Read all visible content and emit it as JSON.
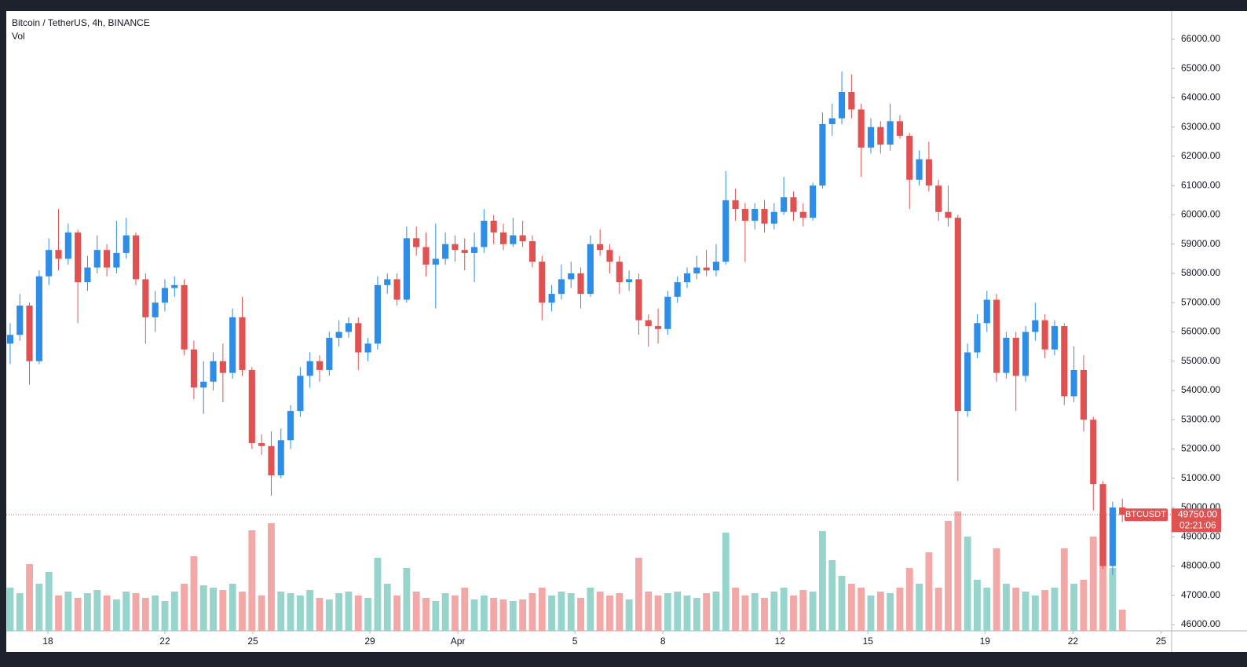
{
  "chart_data": {
    "type": "candlestick",
    "title": "Bitcoin / TetherUS, 4h, BINANCE",
    "volume_label": "Vol",
    "up_color": "#2e8de6",
    "down_color": "#e05252",
    "volume_up_color": "#97d5cc",
    "volume_down_color": "#f3a8a8",
    "open": [
      55600,
      55900,
      56900,
      55000,
      57900,
      58800,
      58500,
      59400,
      57700,
      58200,
      58800,
      58200,
      58700,
      59300,
      57800,
      56500,
      57000,
      57500,
      57600,
      55400,
      54100,
      54300,
      55000,
      54600,
      56500,
      54700,
      52200,
      52100,
      51100,
      52300,
      53300,
      54500,
      55000,
      54700,
      55800,
      56000,
      56300,
      55300,
      55600,
      57600,
      57800,
      57100,
      59200,
      58900,
      58300,
      58500,
      59000,
      58800,
      58700,
      58900,
      59800,
      59400,
      59000,
      59300,
      59100,
      58400,
      57000,
      57300,
      57800,
      58000,
      57300,
      59000,
      58800,
      58400,
      57700,
      57800,
      56400,
      56200,
      56100,
      57200,
      57700,
      58000,
      58200,
      58100,
      58400,
      60500,
      60200,
      59800,
      60200,
      59700,
      60100,
      60600,
      60100,
      59900,
      61000,
      63100,
      63300,
      64200,
      63600,
      62300,
      63000,
      62400,
      63200,
      62700,
      61200,
      61900,
      61000,
      60100,
      59900,
      53300,
      55300,
      56300,
      57100,
      54600,
      55800,
      54500,
      56000,
      56400,
      55400,
      56200,
      53800,
      54700,
      53000,
      50800,
      48000,
      50000
    ],
    "high": [
      56300,
      57300,
      57000,
      58100,
      59200,
      60200,
      59700,
      59500,
      58600,
      59300,
      59000,
      59800,
      59900,
      59400,
      58000,
      57400,
      57800,
      57900,
      57800,
      55700,
      55000,
      55300,
      55600,
      56800,
      57200,
      54800,
      52500,
      52600,
      52700,
      53500,
      54800,
      55300,
      55200,
      56000,
      56400,
      56500,
      56500,
      55800,
      57900,
      58000,
      58000,
      59600,
      59600,
      59400,
      59700,
      59400,
      59300,
      59200,
      59400,
      60200,
      60000,
      59700,
      59900,
      59800,
      59300,
      58600,
      57600,
      58300,
      58400,
      58200,
      59300,
      59500,
      59000,
      58600,
      58100,
      58000,
      56600,
      56800,
      57400,
      57900,
      58200,
      58600,
      58800,
      59000,
      61500,
      60900,
      60400,
      60400,
      60500,
      60400,
      61300,
      60800,
      60400,
      61100,
      63500,
      63800,
      64900,
      64800,
      63800,
      63300,
      63200,
      63800,
      63400,
      62800,
      62200,
      62500,
      61200,
      61000,
      60000,
      55600,
      56600,
      57400,
      57300,
      56000,
      56000,
      56200,
      57000,
      56600,
      56400,
      56300,
      55500,
      55200,
      53100,
      50900,
      50200,
      50300
    ],
    "low": [
      54900,
      55700,
      54200,
      54900,
      57600,
      58100,
      58300,
      56300,
      57400,
      58000,
      57900,
      58000,
      58500,
      57600,
      55600,
      56000,
      56700,
      57200,
      55200,
      53700,
      53200,
      54000,
      53600,
      54400,
      54500,
      52000,
      51800,
      50400,
      51000,
      52000,
      53100,
      54100,
      54300,
      54500,
      55500,
      55800,
      54700,
      55000,
      55400,
      57300,
      56900,
      57000,
      58600,
      57900,
      56800,
      58300,
      58400,
      58100,
      57700,
      58700,
      59000,
      58800,
      58900,
      58900,
      58200,
      56400,
      56700,
      57100,
      57500,
      56800,
      57200,
      58600,
      58000,
      57300,
      57400,
      55900,
      55500,
      55600,
      55900,
      57000,
      57500,
      57800,
      57900,
      57900,
      58300,
      59800,
      58400,
      59500,
      59400,
      59500,
      60000,
      59800,
      59600,
      59800,
      60900,
      62700,
      63100,
      63300,
      61300,
      62100,
      62100,
      62200,
      62600,
      60200,
      61000,
      60800,
      59800,
      59600,
      50900,
      53100,
      55100,
      56000,
      54300,
      54400,
      53300,
      54300,
      55700,
      55100,
      55200,
      53500,
      53600,
      52600,
      49900,
      47900,
      47700,
      49500
    ],
    "close": [
      55900,
      56900,
      55000,
      57900,
      58800,
      58500,
      59400,
      57700,
      58200,
      58800,
      58200,
      58700,
      59300,
      57800,
      56500,
      57000,
      57500,
      57600,
      55400,
      54100,
      54300,
      55000,
      54600,
      56500,
      54700,
      52200,
      52100,
      51100,
      52300,
      53300,
      54500,
      55000,
      54700,
      55800,
      56000,
      56300,
      55300,
      55600,
      57600,
      57800,
      57100,
      59200,
      58900,
      58300,
      58500,
      59000,
      58800,
      58700,
      58900,
      59800,
      59400,
      59000,
      59300,
      59100,
      58400,
      57000,
      57300,
      57800,
      58000,
      57300,
      59000,
      58800,
      58400,
      57700,
      57800,
      56400,
      56200,
      56100,
      57200,
      57700,
      58000,
      58200,
      58100,
      58400,
      60500,
      60200,
      59800,
      60200,
      59700,
      60100,
      60600,
      60100,
      59900,
      61000,
      63100,
      63300,
      64200,
      63600,
      62300,
      63000,
      62400,
      63200,
      62700,
      61200,
      61900,
      61000,
      60100,
      59900,
      53300,
      55300,
      56300,
      57100,
      54600,
      55800,
      54500,
      56000,
      56400,
      55400,
      56200,
      53800,
      54700,
      53000,
      50800,
      48000,
      50000,
      49750
    ],
    "volume": [
      55,
      48,
      85,
      60,
      75,
      45,
      50,
      42,
      48,
      52,
      45,
      40,
      50,
      48,
      42,
      45,
      38,
      50,
      60,
      95,
      58,
      55,
      52,
      60,
      50,
      128,
      45,
      137,
      50,
      48,
      45,
      52,
      42,
      40,
      48,
      50,
      45,
      42,
      93,
      60,
      45,
      80,
      50,
      42,
      38,
      48,
      45,
      55,
      40,
      45,
      42,
      40,
      38,
      40,
      48,
      55,
      45,
      50,
      48,
      42,
      55,
      50,
      45,
      48,
      40,
      93,
      50,
      45,
      48,
      50,
      45,
      42,
      48,
      50,
      125,
      55,
      45,
      48,
      42,
      50,
      55,
      45,
      52,
      50,
      127,
      90,
      70,
      60,
      55,
      45,
      50,
      48,
      55,
      80,
      60,
      100,
      55,
      140,
      152,
      120,
      65,
      55,
      105,
      60,
      55,
      50,
      45,
      52,
      55,
      105,
      60,
      65,
      120,
      150,
      80,
      27
    ],
    "xlim": [
      -0.4,
      120.1
    ],
    "xticks": [
      {
        "value": 3.9,
        "label": "18"
      },
      {
        "value": 16,
        "label": "22"
      },
      {
        "value": 25.1,
        "label": "25"
      },
      {
        "value": 37.2,
        "label": "29"
      },
      {
        "value": 46.3,
        "label": "Apr"
      },
      {
        "value": 58.4,
        "label": "5"
      },
      {
        "value": 67.5,
        "label": "8"
      },
      {
        "value": 79.6,
        "label": "12"
      },
      {
        "value": 88.7,
        "label": "15"
      },
      {
        "value": 100.8,
        "label": "19"
      },
      {
        "value": 109.9,
        "label": "22"
      },
      {
        "value": 119,
        "label": "25"
      }
    ],
    "ylim": [
      45785,
      66966
    ],
    "yticks": [
      {
        "value": 46000,
        "label": "46000.00"
      },
      {
        "value": 47000,
        "label": "47000.00"
      },
      {
        "value": 48000,
        "label": "48000.00"
      },
      {
        "value": 49000,
        "label": "49000.00"
      },
      {
        "value": 50000,
        "label": "50000.00"
      },
      {
        "value": 51000,
        "label": "51000.00"
      },
      {
        "value": 52000,
        "label": "52000.00"
      },
      {
        "value": 53000,
        "label": "53000.00"
      },
      {
        "value": 54000,
        "label": "54000.00"
      },
      {
        "value": 55000,
        "label": "55000.00"
      },
      {
        "value": 56000,
        "label": "56000.00"
      },
      {
        "value": 57000,
        "label": "57000.00"
      },
      {
        "value": 58000,
        "label": "58000.00"
      },
      {
        "value": 59000,
        "label": "59000.00"
      },
      {
        "value": 60000,
        "label": "60000.00"
      },
      {
        "value": 61000,
        "label": "61000.00"
      },
      {
        "value": 62000,
        "label": "62000.00"
      },
      {
        "value": 63000,
        "label": "63000.00"
      },
      {
        "value": 64000,
        "label": "64000.00"
      },
      {
        "value": 65000,
        "label": "65000.00"
      },
      {
        "value": 66000,
        "label": "66000.00"
      }
    ],
    "last_price": {
      "value": 49750,
      "label": "49750.00"
    },
    "symbol_label": "BTCUSDT",
    "countdown": "02:21:06",
    "grid": false
  }
}
